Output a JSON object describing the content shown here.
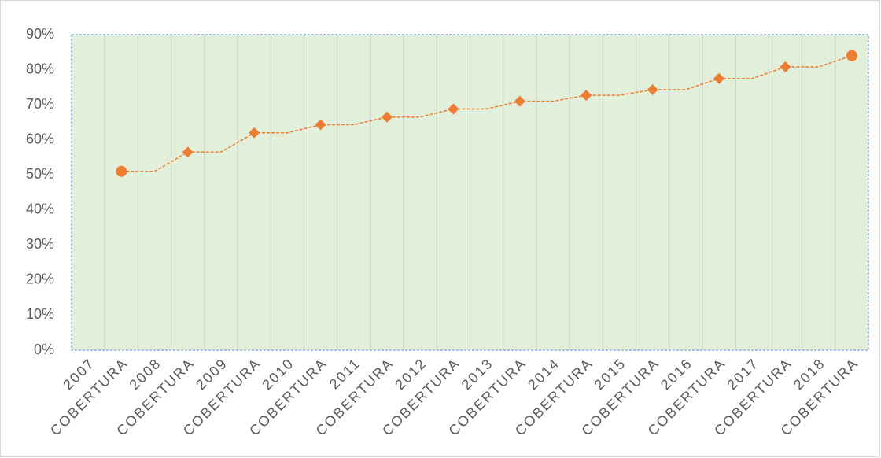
{
  "chart_data": {
    "type": "line",
    "categories": [
      "2007",
      "COBERTURA",
      "2008",
      "COBERTURA",
      "2009",
      "COBERTURA",
      "2010",
      "COBERTURA",
      "2011",
      "COBERTURA",
      "2012",
      "COBERTURA",
      "2013",
      "COBERTURA",
      "2014",
      "COBERTURA",
      "2015",
      "COBERTURA",
      "2016",
      "COBERTURA",
      "2017",
      "COBERTURA",
      "2018",
      "COBERTURA"
    ],
    "series": [
      {
        "color": "#ed7d31",
        "values": [
          null,
          51,
          51,
          56.5,
          56.5,
          62,
          62,
          64.3,
          64.3,
          66.5,
          66.5,
          68.8,
          68.8,
          71,
          71,
          72.7,
          72.7,
          74.3,
          74.3,
          77.5,
          77.5,
          80.8,
          80.8,
          84
        ]
      }
    ],
    "ylim": [
      0,
      90
    ],
    "yticks": [
      {
        "value": 0,
        "label": "0%"
      },
      {
        "value": 10,
        "label": "10%"
      },
      {
        "value": 20,
        "label": "20%"
      },
      {
        "value": 30,
        "label": "30%"
      },
      {
        "value": 40,
        "label": "40%"
      },
      {
        "value": 50,
        "label": "50%"
      },
      {
        "value": 60,
        "label": "60%"
      },
      {
        "value": 70,
        "label": "70%"
      },
      {
        "value": 80,
        "label": "80%"
      },
      {
        "value": 90,
        "label": "90%"
      }
    ],
    "plot_background": "#e2efda",
    "grid": true
  }
}
